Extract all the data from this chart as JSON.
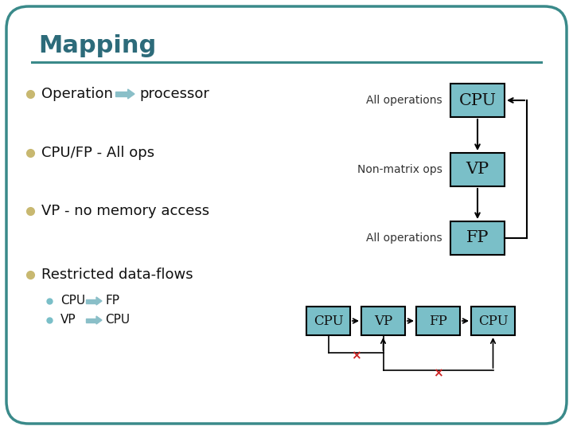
{
  "title": "Mapping",
  "title_color": "#2d6b7a",
  "title_fontsize": 22,
  "bg_color": "#ffffff",
  "slide_border_color": "#3a8a8a",
  "box_fill": "#7abfc8",
  "box_edge": "#000000",
  "bullet_color": "#c8b870",
  "sub_bullet_color": "#7abfc8",
  "bullet_items": [
    "Operation",
    "CPU/FP - All ops",
    "VP - no memory access",
    "Restricted data-flows"
  ],
  "sub_bullets": [
    "CPU",
    "VP"
  ],
  "sub_arrow_targets": [
    "FP",
    "CPU"
  ],
  "right_boxes": [
    "CPU",
    "VP",
    "FP"
  ],
  "right_labels": [
    "All operations",
    "Non-matrix ops",
    "All operations"
  ],
  "bottom_boxes": [
    "CPU",
    "VP",
    "FP",
    "CPU"
  ],
  "line_color": "#000000",
  "cross_color": "#cc2222",
  "header_line_color": "#3a8a8a"
}
